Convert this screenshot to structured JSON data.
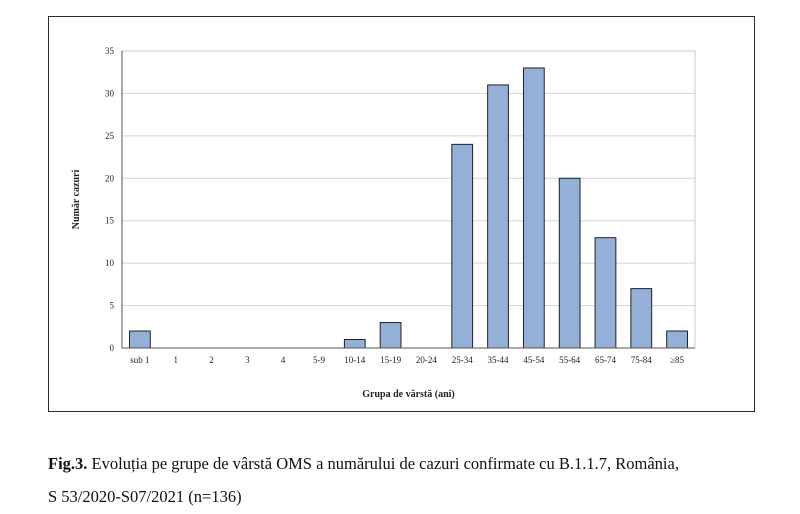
{
  "chart_data": {
    "type": "bar",
    "categories": [
      "sub 1",
      "1",
      "2",
      "3",
      "4",
      "5-9",
      "10-14",
      "15-19",
      "20-24",
      "25-34",
      "35-44",
      "45-54",
      "55-64",
      "65-74",
      "75-84",
      "≥85"
    ],
    "values": [
      2,
      0,
      0,
      0,
      0,
      0,
      1,
      3,
      0,
      24,
      31,
      33,
      20,
      13,
      7,
      2
    ],
    "title": "",
    "xlabel": "Grupa de vârstă (ani)",
    "ylabel": "Număr cazuri",
    "ylim": [
      0,
      35
    ],
    "yticks": [
      0,
      5,
      10,
      15,
      20,
      25,
      30,
      35
    ],
    "grid": true,
    "bar_color": "#94b0d8",
    "bar_edge_color": "#222222"
  },
  "caption": {
    "label": "Fig.3.",
    "line1": " Evoluția pe grupe de vârstă OMS a numărului de cazuri confirmate cu B.1.1.7, România,",
    "line2": "S 53/2020-S07/2021 (n=136)"
  }
}
